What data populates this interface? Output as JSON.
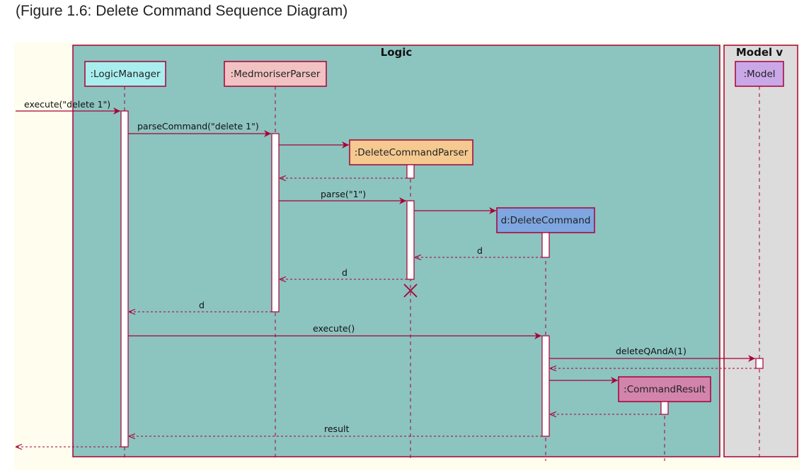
{
  "caption": "(Figure 1.6: Delete Command Sequence Diagram)",
  "groups": {
    "logic": "Logic",
    "model": "Model v"
  },
  "participants": {
    "logic_manager": ":LogicManager",
    "parser": ":MedmoriserParser",
    "delete_parser": ":DeleteCommandParser",
    "delete_command": "d:DeleteCommand",
    "command_result": ":CommandResult",
    "model": ":Model"
  },
  "messages": {
    "m1": "execute(\"delete 1\")",
    "m2": "parseCommand(\"delete 1\")",
    "m3": "parse(\"1\")",
    "m4": "d",
    "m5": "d",
    "m6": "d",
    "m7": "execute()",
    "m8": "deleteQAndA(1)",
    "m9": "result"
  },
  "colors": {
    "stroke": "#a80036",
    "logic_bg": "#8cc4c0",
    "model_bg": "#dcdcdc",
    "canvas_bg": "#fefdee",
    "logic_manager_fill": "#a9eeee",
    "parser_fill": "#f2c2c2",
    "delete_parser_fill": "#f5c98f",
    "delete_command_fill": "#7ea6e0",
    "command_result_fill": "#d284ac",
    "model_fill": "#caa8e8"
  }
}
